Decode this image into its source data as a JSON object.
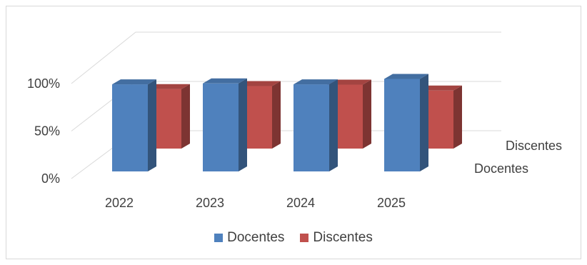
{
  "chart_data": {
    "type": "bar",
    "title": "",
    "xlabel": "",
    "ylabel": "",
    "categories": [
      "2022",
      "2023",
      "2024",
      "2025"
    ],
    "series": [
      {
        "name": "Docentes",
        "values": [
          96,
          97,
          96,
          102
        ],
        "color": "#4f81bd"
      },
      {
        "name": "Discentes",
        "values": [
          80,
          84,
          86,
          78
        ],
        "color": "#c0504d"
      }
    ],
    "ylim": [
      0,
      100
    ],
    "y_ticks": [
      "0%",
      "50%",
      "100%"
    ],
    "depth_labels": [
      "Discentes",
      "Docentes"
    ],
    "grid": true,
    "legend_position": "bottom",
    "three_d": true
  }
}
